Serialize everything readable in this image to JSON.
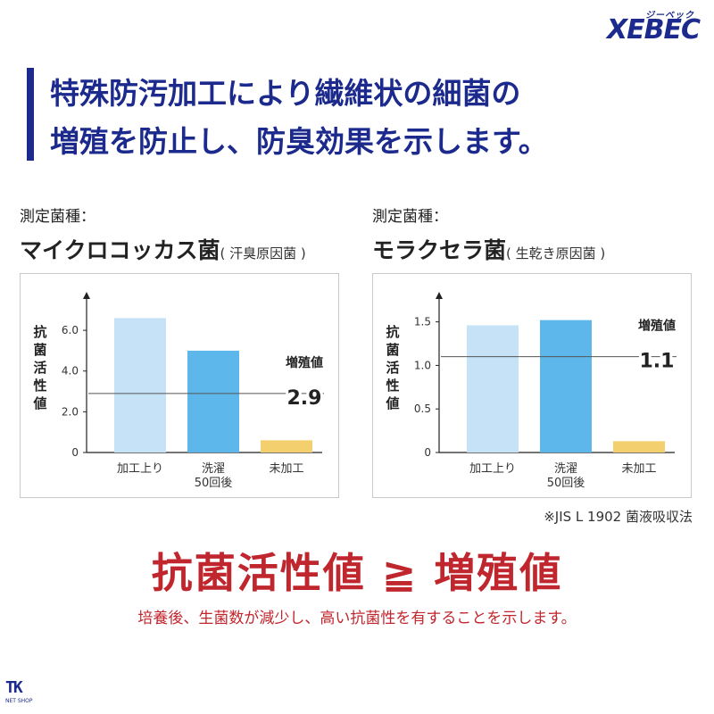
{
  "brand": {
    "logo_text": "XEBEC",
    "logo_ruby": "ジーベック"
  },
  "headline": {
    "line1": "特殊防汚加工により繊維状の細菌の",
    "line2": "増殖を防止し、防臭効果を示します。"
  },
  "left": {
    "label": "測定菌種：",
    "main": "マイクロコッカス菌",
    "note": "( 汗臭原因菌 )"
  },
  "right": {
    "label": "測定菌種：",
    "main": "モラクセラ菌",
    "note": "( 生乾き原因菌 )"
  },
  "footnote": "※JIS L 1902 菌液吸収法",
  "formula": {
    "left": "抗菌活性値",
    "symbol": "≧",
    "right": "増殖値"
  },
  "subtext": "培養後、生菌数が減少し、高い抗菌性を有することを示します。",
  "shop": {
    "mark": "TK",
    "sub": "NET SHOP"
  },
  "colors": {
    "navy": "#1b2a8c",
    "red": "#c0262d",
    "bar_light": "#c5e2f6",
    "bar_mid": "#5db7ea",
    "bar_yellow": "#f3cf6e"
  },
  "chart_data": [
    {
      "type": "bar",
      "ylabel": "抗菌活性値",
      "categories": [
        [
          "加工上り"
        ],
        [
          "洗濯",
          "50回後"
        ],
        [
          "未加工"
        ]
      ],
      "values": [
        6.6,
        5.0,
        0.6
      ],
      "bar_colors": [
        "#c5e2f6",
        "#5db7ea",
        "#f3cf6e"
      ],
      "yticks": [
        0,
        2.0,
        4.0,
        6.0
      ],
      "ytick_labels": [
        "0",
        "2.0",
        "4.0",
        "6.0"
      ],
      "ylim": [
        0,
        7.1
      ],
      "reference": {
        "label": "増殖値",
        "value": 2.9,
        "value_label": "2.9"
      },
      "grid": false
    },
    {
      "type": "bar",
      "ylabel": "抗菌活性値",
      "categories": [
        [
          "加工上り"
        ],
        [
          "洗濯",
          "50回後"
        ],
        [
          "未加工"
        ]
      ],
      "values": [
        1.46,
        1.52,
        0.13
      ],
      "bar_colors": [
        "#c5e2f6",
        "#5db7ea",
        "#f3cf6e"
      ],
      "yticks": [
        0,
        0.5,
        1.0,
        1.5
      ],
      "ytick_labels": [
        "0",
        "0.5",
        "1.0",
        "1.5"
      ],
      "ylim": [
        0,
        1.66
      ],
      "reference": {
        "label": "増殖値",
        "value": 1.1,
        "value_label": "1.1"
      },
      "grid": false
    }
  ]
}
